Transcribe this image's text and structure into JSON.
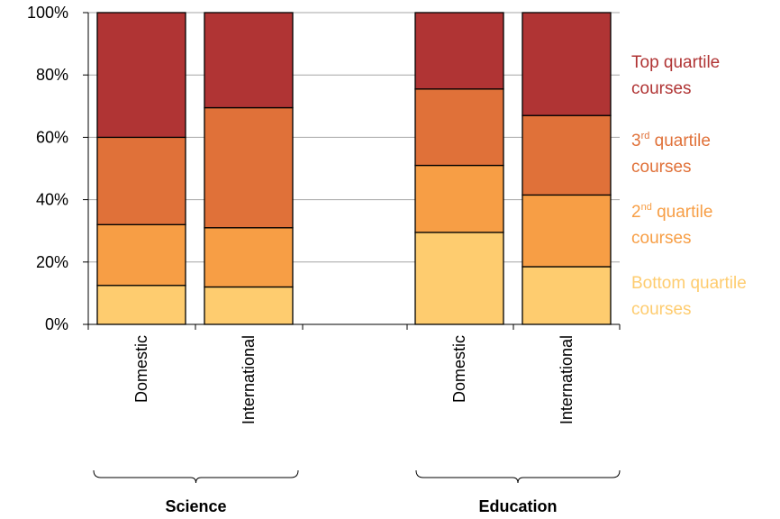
{
  "chart_data": {
    "type": "bar",
    "stacked": true,
    "normalized": true,
    "title": "",
    "xlabel": "",
    "ylabel": "",
    "ylim": [
      0,
      100
    ],
    "y_ticks": [
      "0%",
      "20%",
      "40%",
      "60%",
      "80%",
      "100%"
    ],
    "grid": true,
    "legend_placement": "right",
    "groups": [
      {
        "name": "Science",
        "categories": [
          "Domestic",
          "International"
        ]
      },
      {
        "name": "Education",
        "categories": [
          "Domestic",
          "International"
        ]
      }
    ],
    "categories": [
      "Domestic",
      "International",
      "Domestic",
      "International"
    ],
    "series": [
      {
        "name": "Bottom quartile courses",
        "label_main": "Bottom quartile",
        "label_sup": "",
        "label_rest": "",
        "label_line2": "courses",
        "color": "#FECC6F",
        "values": [
          12.5,
          12,
          29.5,
          18.5
        ]
      },
      {
        "name": "2nd quartile courses",
        "label_main": "2",
        "label_sup": "nd",
        "label_rest": " quartile",
        "label_line2": "courses",
        "color": "#F79E45",
        "values": [
          19.5,
          19,
          21.5,
          23
        ]
      },
      {
        "name": "3rd quartile courses",
        "label_main": "3",
        "label_sup": "rd",
        "label_rest": " quartile",
        "label_line2": "courses",
        "color": "#E07139",
        "values": [
          28,
          38.5,
          24.5,
          25.5
        ]
      },
      {
        "name": "Top quartile courses",
        "label_main": "Top quartile",
        "label_sup": "",
        "label_rest": "",
        "label_line2": "courses",
        "color": "#B03434",
        "values": [
          40,
          30.5,
          24.5,
          33
        ]
      }
    ]
  }
}
